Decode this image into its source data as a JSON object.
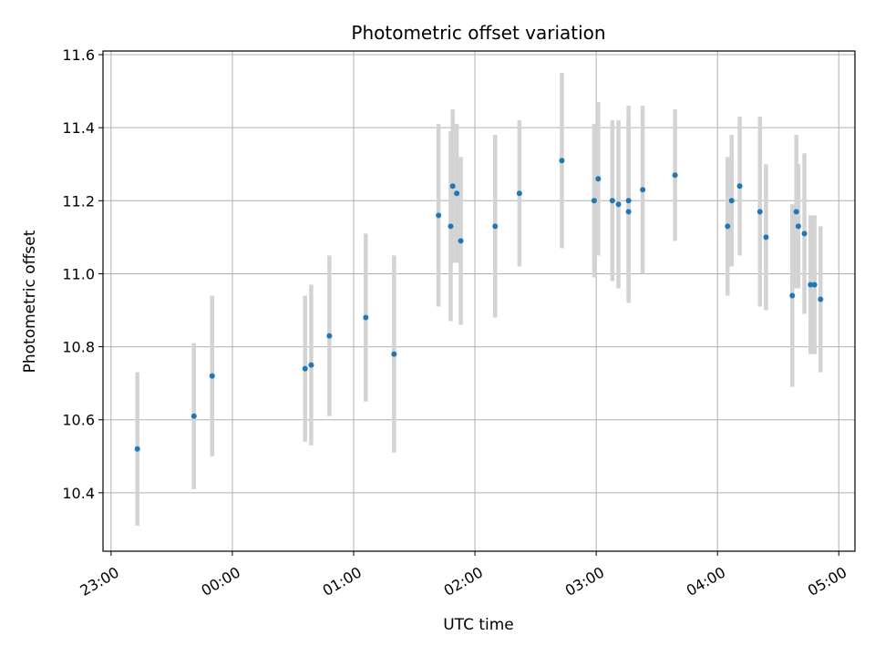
{
  "chart_data": {
    "type": "scatter",
    "title": "Photometric offset variation",
    "xlabel": "UTC time",
    "ylabel": "Photometric offset",
    "grid": true,
    "x_unit": "UTC hours",
    "xlim": [
      "22:56",
      "05:08"
    ],
    "ylim": [
      10.24,
      11.61
    ],
    "x_ticks": [
      "23:00",
      "00:00",
      "01:00",
      "02:00",
      "03:00",
      "04:00",
      "05:00"
    ],
    "y_ticks": [
      10.4,
      10.6,
      10.8,
      11.0,
      11.2,
      11.4,
      11.6
    ],
    "y_tick_labels": [
      "10.4",
      "10.6",
      "10.8",
      "11.0",
      "11.2",
      "11.4",
      "11.6"
    ],
    "point_color": "#1f77b4",
    "errorbar_color": "#d3d3d3",
    "series": [
      {
        "points": [
          {
            "x": "23:13",
            "y": 10.52,
            "err": 0.21
          },
          {
            "x": "23:41",
            "y": 10.61,
            "err": 0.2
          },
          {
            "x": "23:50",
            "y": 10.72,
            "err": 0.22
          },
          {
            "x": "00:36",
            "y": 10.74,
            "err": 0.2
          },
          {
            "x": "00:39",
            "y": 10.75,
            "err": 0.22
          },
          {
            "x": "00:48",
            "y": 10.83,
            "err": 0.22
          },
          {
            "x": "01:06",
            "y": 10.88,
            "err": 0.23
          },
          {
            "x": "01:20",
            "y": 10.78,
            "err": 0.27
          },
          {
            "x": "01:42",
            "y": 11.16,
            "err": 0.25
          },
          {
            "x": "01:48",
            "y": 11.13,
            "err": 0.26
          },
          {
            "x": "01:49",
            "y": 11.24,
            "err": 0.21
          },
          {
            "x": "01:51",
            "y": 11.22,
            "err": 0.19
          },
          {
            "x": "01:53",
            "y": 11.09,
            "err": 0.23
          },
          {
            "x": "02:10",
            "y": 11.13,
            "err": 0.25
          },
          {
            "x": "02:22",
            "y": 11.22,
            "err": 0.2
          },
          {
            "x": "02:43",
            "y": 11.31,
            "err": 0.24
          },
          {
            "x": "02:59",
            "y": 11.2,
            "err": 0.21
          },
          {
            "x": "03:01",
            "y": 11.26,
            "err": 0.21
          },
          {
            "x": "03:08",
            "y": 11.2,
            "err": 0.22
          },
          {
            "x": "03:11",
            "y": 11.19,
            "err": 0.23
          },
          {
            "x": "03:16",
            "y": 11.17,
            "err": 0.25
          },
          {
            "x": "03:16",
            "y": 11.2,
            "err": 0.26
          },
          {
            "x": "03:23",
            "y": 11.23,
            "err": 0.23
          },
          {
            "x": "03:39",
            "y": 11.27,
            "err": 0.18
          },
          {
            "x": "04:05",
            "y": 11.13,
            "err": 0.19
          },
          {
            "x": "04:07",
            "y": 11.2,
            "err": 0.18
          },
          {
            "x": "04:11",
            "y": 11.24,
            "err": 0.19
          },
          {
            "x": "04:21",
            "y": 11.17,
            "err": 0.26
          },
          {
            "x": "04:24",
            "y": 11.1,
            "err": 0.2
          },
          {
            "x": "04:37",
            "y": 10.94,
            "err": 0.25
          },
          {
            "x": "04:39",
            "y": 11.17,
            "err": 0.21
          },
          {
            "x": "04:40",
            "y": 11.13,
            "err": 0.17
          },
          {
            "x": "04:43",
            "y": 11.11,
            "err": 0.22
          },
          {
            "x": "04:46",
            "y": 10.97,
            "err": 0.19
          },
          {
            "x": "04:48",
            "y": 10.97,
            "err": 0.19
          },
          {
            "x": "04:51",
            "y": 10.93,
            "err": 0.2
          }
        ]
      }
    ]
  }
}
